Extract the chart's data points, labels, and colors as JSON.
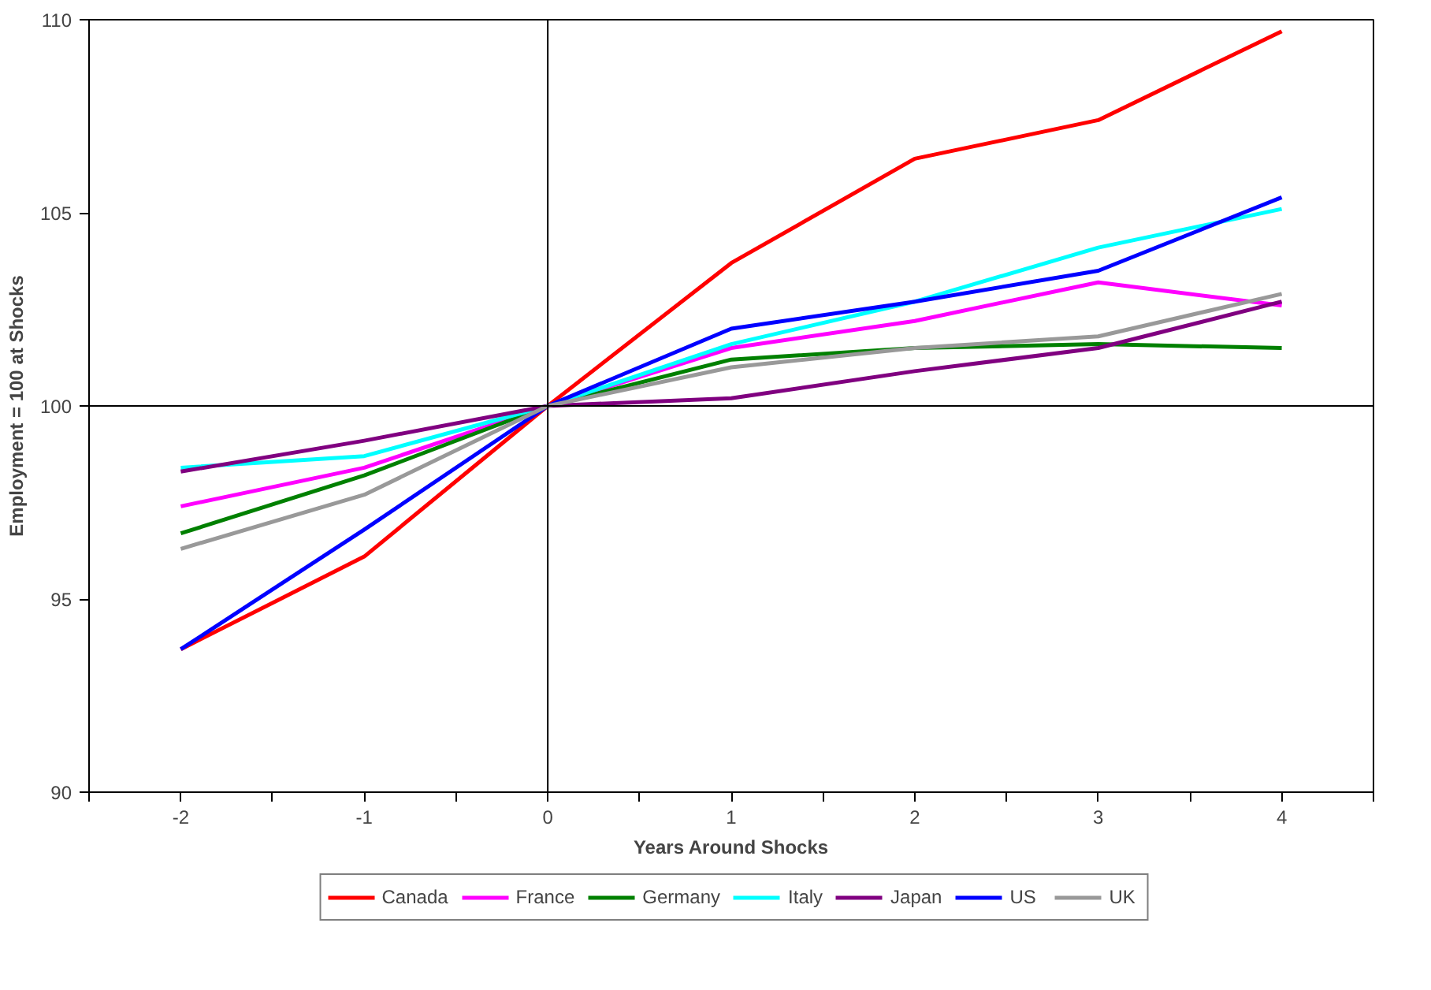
{
  "chart_data": {
    "type": "line",
    "xlabel": "Years Around Shocks",
    "ylabel": "Employment = 100 at Shocks",
    "x": [
      -2,
      -1,
      0,
      1,
      2,
      3,
      4
    ],
    "xlim": [
      -2.5,
      4.5
    ],
    "xticks": [
      -2,
      -1,
      0,
      1,
      2,
      3,
      4,
      {
        "value": -2.5,
        "label": null
      },
      {
        "value": -1.5,
        "label": null
      },
      {
        "value": -0.5,
        "label": null
      },
      {
        "value": 0.5,
        "label": null
      },
      {
        "value": 1.5,
        "label": null
      },
      {
        "value": 2.5,
        "label": null
      },
      {
        "value": 3.5,
        "label": null
      },
      {
        "value": 4.5,
        "label": null
      }
    ],
    "ylim": [
      90,
      110
    ],
    "yticks": [
      90,
      95,
      100,
      105,
      110
    ],
    "series": [
      {
        "name": "Canada",
        "color": "#ff0000",
        "values": [
          93.7,
          96.1,
          100,
          103.7,
          106.4,
          107.4,
          109.7
        ]
      },
      {
        "name": "France",
        "color": "#ff00ff",
        "values": [
          97.4,
          98.4,
          100,
          101.5,
          102.2,
          103.2,
          102.6
        ]
      },
      {
        "name": "Germany",
        "color": "#008000",
        "values": [
          96.7,
          98.2,
          100,
          101.2,
          101.5,
          101.6,
          101.5
        ]
      },
      {
        "name": "Italy",
        "color": "#00ffff",
        "values": [
          98.4,
          98.7,
          100,
          101.6,
          102.7,
          104.1,
          105.1
        ]
      },
      {
        "name": "Japan",
        "color": "#800080",
        "values": [
          98.3,
          99.1,
          100,
          100.2,
          100.9,
          101.5,
          102.7
        ]
      },
      {
        "name": "US",
        "color": "#0000ff",
        "values": [
          93.7,
          96.8,
          100,
          102,
          102.7,
          103.5,
          105.4
        ]
      },
      {
        "name": "UK",
        "color": "#999999",
        "values": [
          96.3,
          97.7,
          100,
          101,
          101.5,
          101.8,
          102.9
        ]
      }
    ],
    "ref_lines": [
      {
        "axis": "x",
        "value": 0,
        "color": "#000000"
      },
      {
        "axis": "y",
        "value": 100,
        "color": "#000000"
      }
    ],
    "grid": false,
    "legend": "bottom",
    "marker": "none",
    "line_style": "solid"
  }
}
